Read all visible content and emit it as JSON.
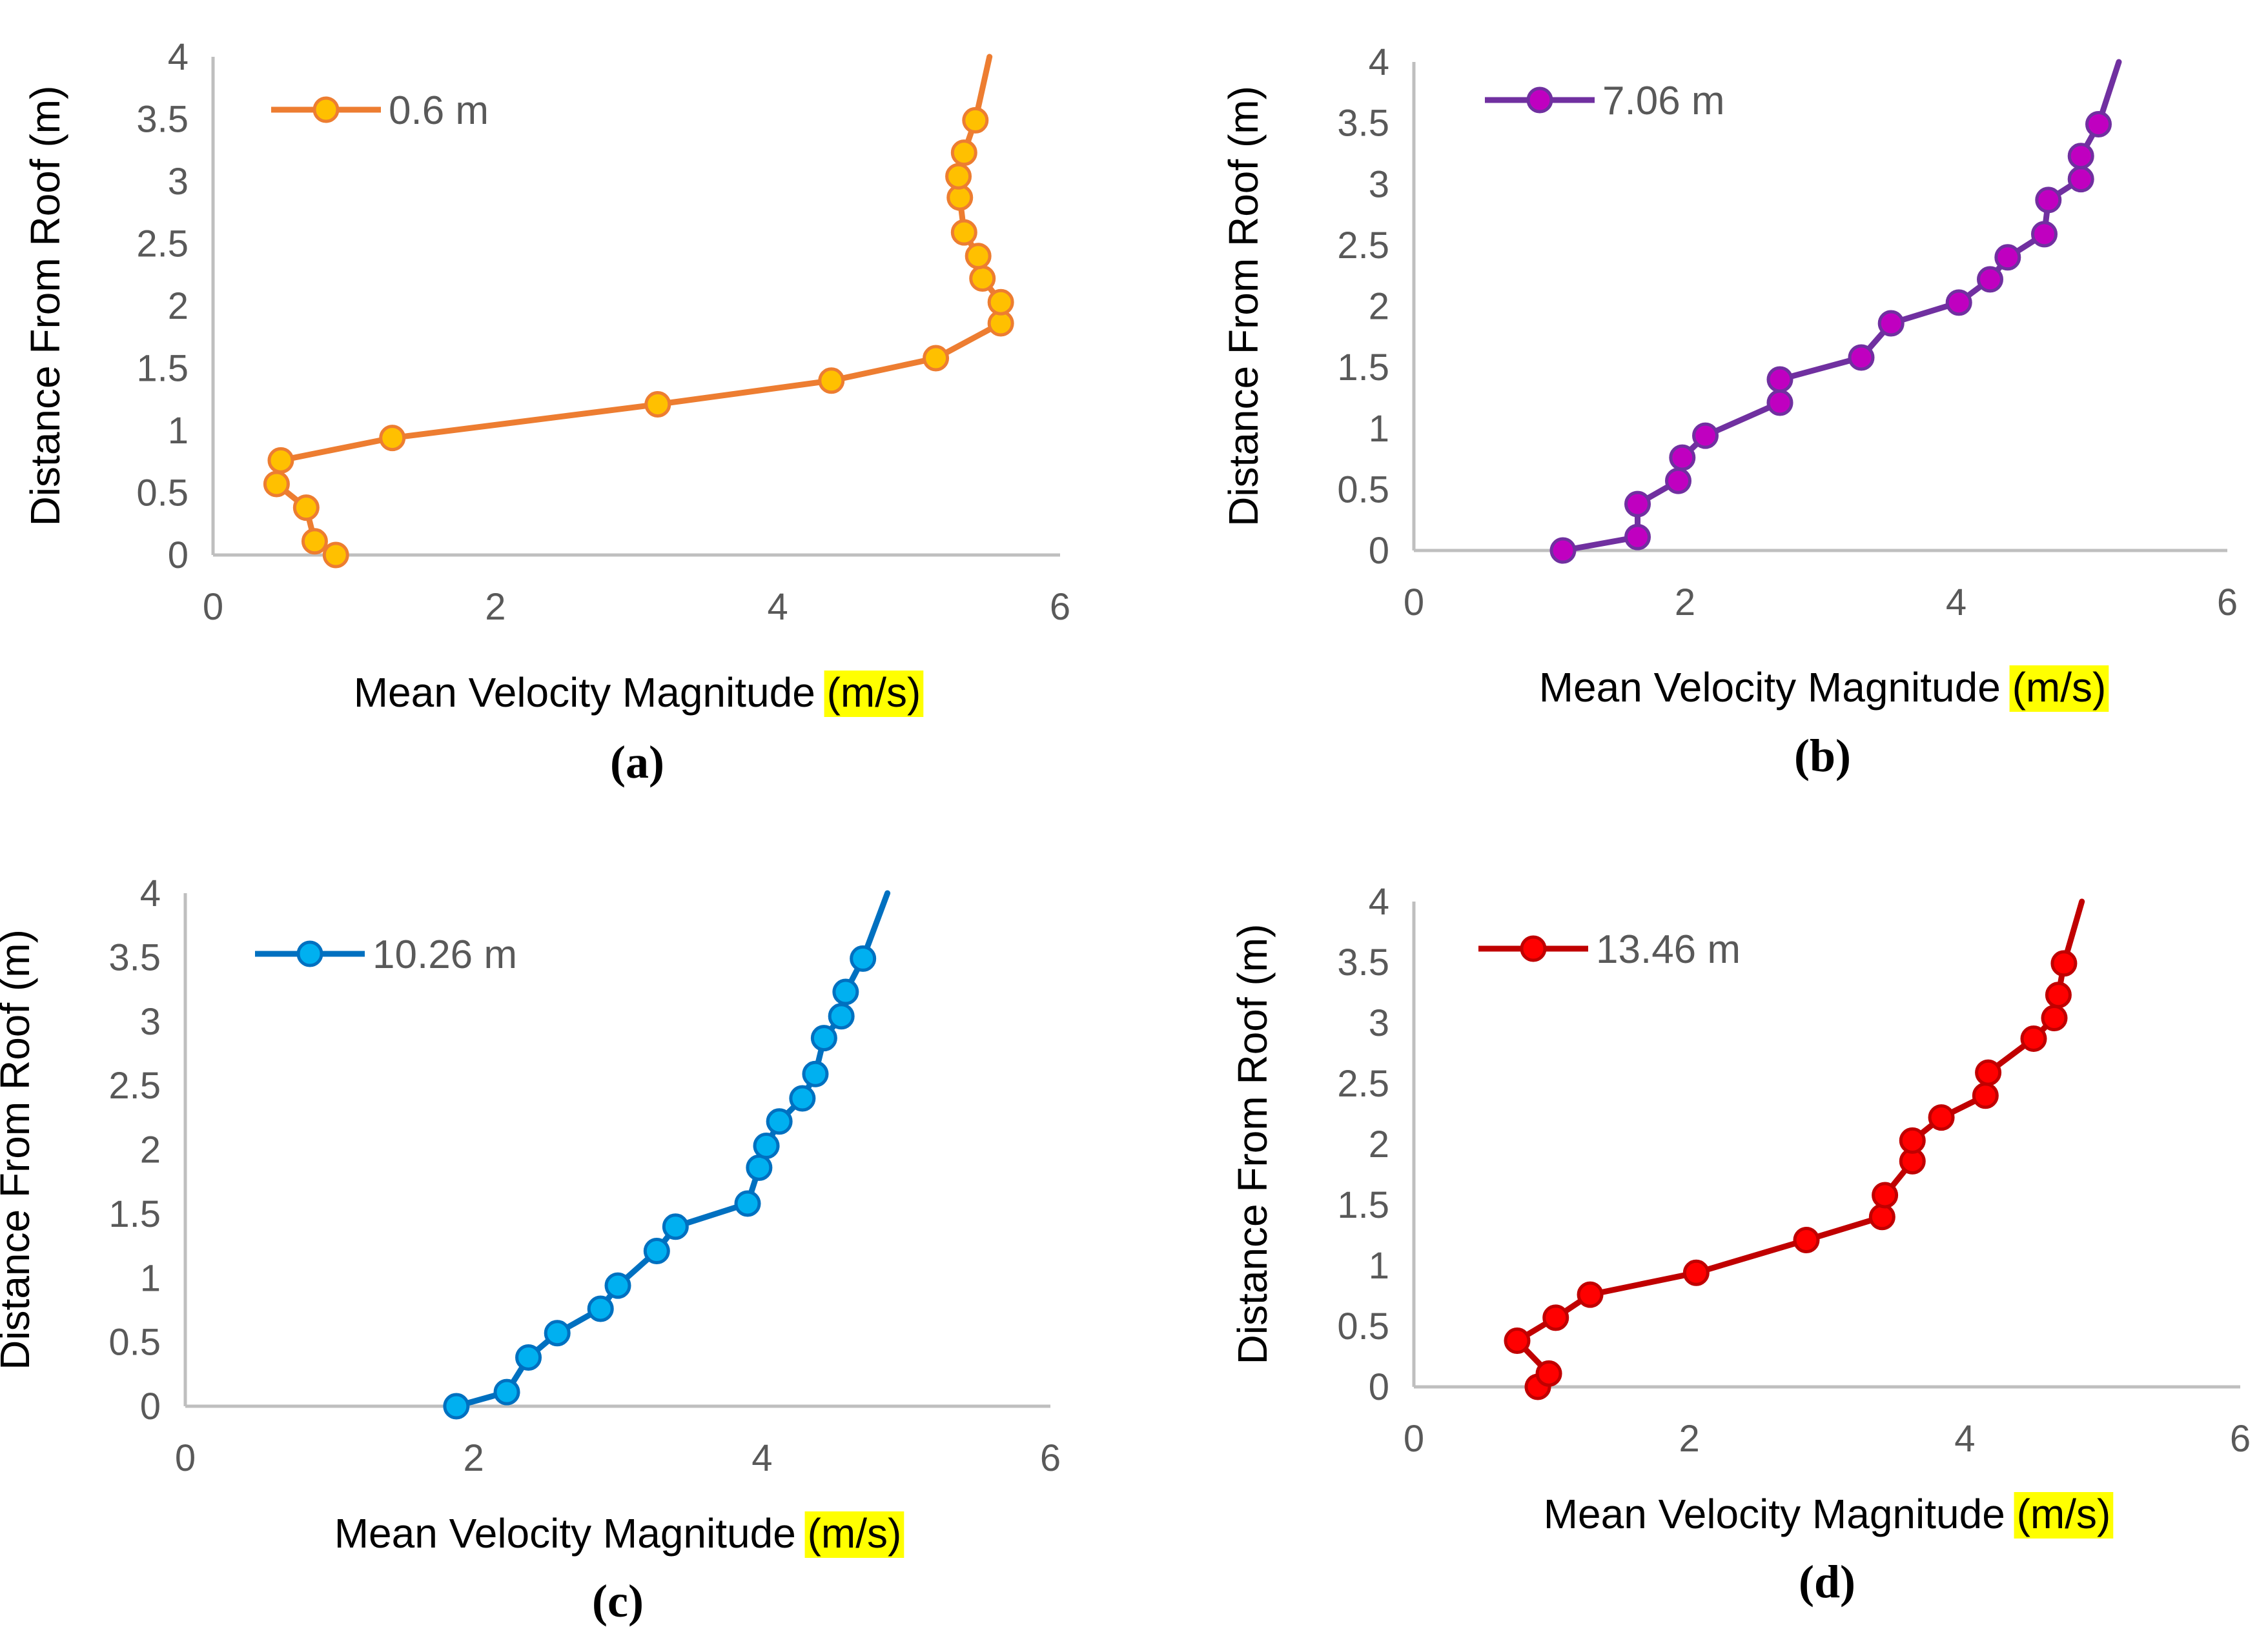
{
  "chart_data": [
    {
      "type": "line",
      "panel_label": "(a)",
      "xlabel": "Mean Velocity Magnitude",
      "xlabel_unit": "(m/s)",
      "ylabel": "Distance From Roof (m)",
      "xlim": [
        0,
        6
      ],
      "ylim": [
        0,
        4
      ],
      "x_ticks": [
        "0",
        "2",
        "4",
        "6"
      ],
      "y_ticks": [
        "0",
        "0.5",
        "1",
        "1.5",
        "2",
        "2.5",
        "3",
        "3.5",
        "4"
      ],
      "grid": false,
      "legend_position": "top-left",
      "series": [
        {
          "name": "0.6 m",
          "line_color": "#ED7D31",
          "marker_color": "#FFC000",
          "marker_edge": "#ED7D31",
          "points": [
            [
              0.87,
              0.0
            ],
            [
              0.72,
              0.11
            ],
            [
              0.66,
              0.38
            ],
            [
              0.45,
              0.57
            ],
            [
              0.48,
              0.76
            ],
            [
              1.27,
              0.94
            ],
            [
              3.15,
              1.21
            ],
            [
              4.38,
              1.4
            ],
            [
              5.12,
              1.58
            ],
            [
              5.58,
              1.86
            ],
            [
              5.58,
              2.03
            ],
            [
              5.45,
              2.22
            ],
            [
              5.42,
              2.4
            ],
            [
              5.32,
              2.59
            ],
            [
              5.29,
              2.87
            ],
            [
              5.28,
              3.04
            ],
            [
              5.32,
              3.23
            ],
            [
              5.4,
              3.49
            ]
          ],
          "tail": [
            5.5,
            4.0
          ]
        }
      ]
    },
    {
      "type": "line",
      "panel_label": "(b)",
      "xlabel": "Mean Velocity Magnitude",
      "xlabel_unit": "(m/s)",
      "ylabel": "Distance From Roof (m)",
      "xlim": [
        0,
        6
      ],
      "ylim": [
        0,
        4
      ],
      "x_ticks": [
        "0",
        "2",
        "4",
        "6"
      ],
      "y_ticks": [
        "0",
        "0.5",
        "1",
        "1.5",
        "2",
        "2.5",
        "3",
        "3.5",
        "4"
      ],
      "grid": false,
      "legend_position": "top-left",
      "series": [
        {
          "name": "7.06 m",
          "line_color": "#7030A0",
          "marker_color": "#C000C0",
          "marker_edge": "#7030A0",
          "points": [
            [
              1.1,
              0.0
            ],
            [
              1.65,
              0.11
            ],
            [
              1.65,
              0.38
            ],
            [
              1.95,
              0.57
            ],
            [
              1.98,
              0.76
            ],
            [
              2.15,
              0.94
            ],
            [
              2.7,
              1.21
            ],
            [
              2.7,
              1.4
            ],
            [
              3.3,
              1.58
            ],
            [
              3.52,
              1.86
            ],
            [
              4.02,
              2.03
            ],
            [
              4.25,
              2.22
            ],
            [
              4.38,
              2.4
            ],
            [
              4.65,
              2.59
            ],
            [
              4.68,
              2.87
            ],
            [
              4.92,
              3.04
            ],
            [
              4.92,
              3.23
            ],
            [
              5.05,
              3.49
            ]
          ],
          "tail": [
            5.2,
            4.0
          ]
        }
      ]
    },
    {
      "type": "line",
      "panel_label": "(c)",
      "xlabel": "Mean Velocity Magnitude",
      "xlabel_unit": "(m/s)",
      "ylabel": "Distance From Roof (m)",
      "xlim": [
        0,
        6
      ],
      "ylim": [
        0,
        4
      ],
      "x_ticks": [
        "0",
        "2",
        "4",
        "6"
      ],
      "y_ticks": [
        "0",
        "0.5",
        "1",
        "1.5",
        "2",
        "2.5",
        "3",
        "3.5",
        "4"
      ],
      "grid": false,
      "legend_position": "top-left",
      "series": [
        {
          "name": "10.26 m",
          "line_color": "#0070C0",
          "marker_color": "#00B0F0",
          "marker_edge": "#0070C0",
          "points": [
            [
              1.88,
              0.0
            ],
            [
              2.23,
              0.11
            ],
            [
              2.38,
              0.38
            ],
            [
              2.58,
              0.57
            ],
            [
              2.88,
              0.76
            ],
            [
              3.0,
              0.94
            ],
            [
              3.27,
              1.21
            ],
            [
              3.4,
              1.4
            ],
            [
              3.9,
              1.58
            ],
            [
              3.98,
              1.86
            ],
            [
              4.03,
              2.03
            ],
            [
              4.12,
              2.22
            ],
            [
              4.28,
              2.4
            ],
            [
              4.37,
              2.59
            ],
            [
              4.43,
              2.87
            ],
            [
              4.55,
              3.04
            ],
            [
              4.58,
              3.23
            ],
            [
              4.7,
              3.49
            ]
          ],
          "tail": [
            4.87,
            4.0
          ]
        }
      ]
    },
    {
      "type": "line",
      "panel_label": "(d)",
      "xlabel": "Mean Velocity Magnitude",
      "xlabel_unit": "(m/s)",
      "ylabel": "Distance From Roof (m)",
      "xlim": [
        0,
        6
      ],
      "ylim": [
        0,
        4
      ],
      "x_ticks": [
        "0",
        "2",
        "4",
        "6"
      ],
      "y_ticks": [
        "0",
        "0.5",
        "1",
        "1.5",
        "2",
        "2.5",
        "3",
        "3.5",
        "4"
      ],
      "grid": false,
      "legend_position": "top-left",
      "series": [
        {
          "name": "13.46 m",
          "line_color": "#C00000",
          "marker_color": "#FF0000",
          "marker_edge": "#C00000",
          "points": [
            [
              0.9,
              0.0
            ],
            [
              0.98,
              0.11
            ],
            [
              0.75,
              0.38
            ],
            [
              1.03,
              0.57
            ],
            [
              1.28,
              0.76
            ],
            [
              2.05,
              0.94
            ],
            [
              2.85,
              1.21
            ],
            [
              3.4,
              1.4
            ],
            [
              3.42,
              1.58
            ],
            [
              3.62,
              1.86
            ],
            [
              3.62,
              2.03
            ],
            [
              3.83,
              2.22
            ],
            [
              4.15,
              2.4
            ],
            [
              4.17,
              2.59
            ],
            [
              4.5,
              2.87
            ],
            [
              4.65,
              3.04
            ],
            [
              4.68,
              3.23
            ],
            [
              4.72,
              3.49
            ]
          ],
          "tail": [
            4.85,
            4.0
          ]
        }
      ]
    }
  ],
  "colors": {
    "axis_line": "#BFBFBF",
    "tick_text": "#595959",
    "unit_highlight": "#FFFF00"
  }
}
